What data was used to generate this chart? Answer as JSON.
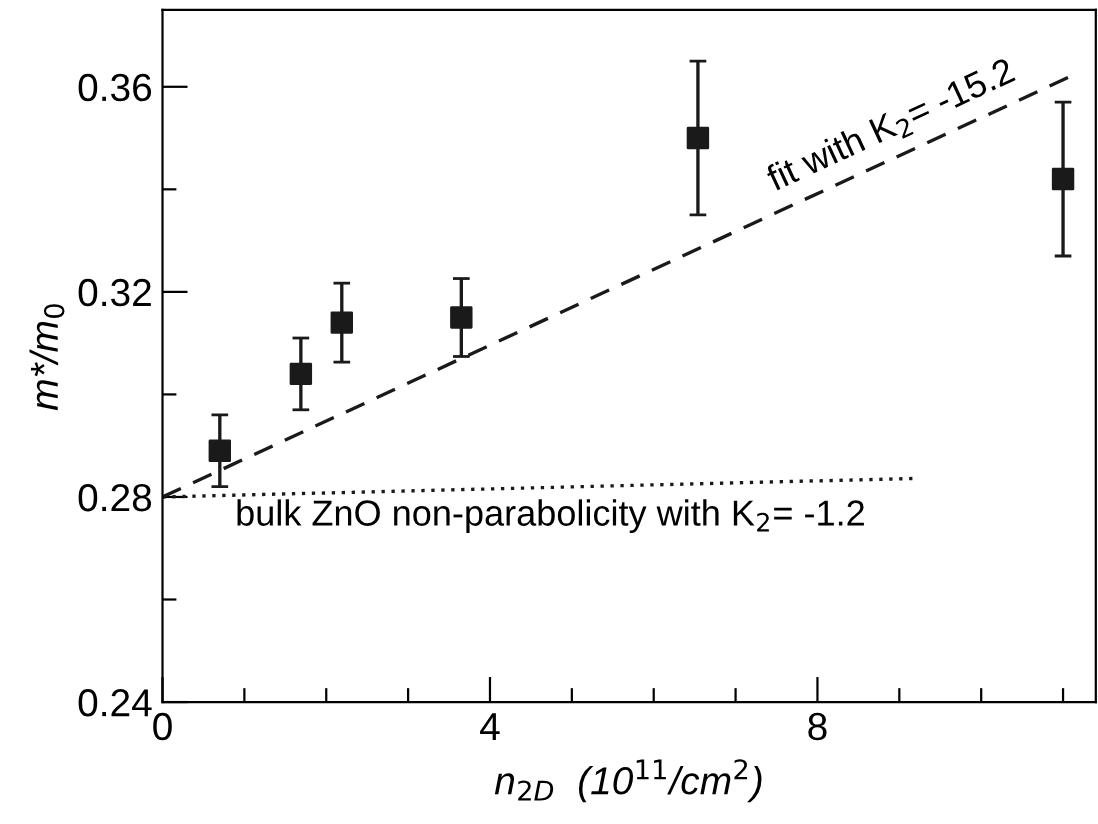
{
  "chart_data": {
    "type": "scatter",
    "xlabel": "n$_{2D}$  (10$^{11}$/cm$^{2}$)",
    "ylabel": "m*/m$_{0}$",
    "series": [
      {
        "color": "#1a1a1a",
        "marker": "square",
        "x": [
          0.7,
          1.69,
          2.19,
          3.65,
          6.54,
          11.0
        ],
        "values": [
          0.289,
          0.304,
          0.314,
          0.315,
          0.35,
          0.342
        ],
        "errors": [
          0.007,
          0.007,
          0.0077,
          0.0076,
          0.015,
          0.015
        ]
      },
      {
        "type": "line",
        "color": "#1a1a1a",
        "line_style": "dashed",
        "marker": "none",
        "x": [
          0,
          4,
          11.06
        ],
        "values": [
          0.28,
          0.3096,
          0.3618
        ]
      },
      {
        "type": "line",
        "color": "#1a1a1a",
        "line_style": "dotted",
        "marker": "none",
        "x": [
          0,
          9.16
        ],
        "values": [
          0.28,
          0.2836
        ]
      }
    ],
    "annotations": [
      {
        "text": "fit with K$_{2}$= -15.2",
        "x": 9.0,
        "y": 0.347
      },
      {
        "text": "bulk ZnO non-parabolicity with K$_{2}$= -1.2",
        "x": 4.74,
        "y": 0.2817
      }
    ],
    "xlim": [
      0,
      11.4
    ],
    "ylim": [
      0.24,
      0.375
    ],
    "xticks": [
      0,
      {
        "value": 1,
        "label": null
      },
      {
        "value": 2,
        "label": null
      },
      {
        "value": 3,
        "label": null
      },
      4,
      {
        "value": 5,
        "label": null
      },
      {
        "value": 6,
        "label": null
      },
      {
        "value": 7,
        "label": null
      },
      8,
      {
        "value": 9,
        "label": null
      },
      {
        "value": 10,
        "label": null
      },
      {
        "value": 11,
        "label": null
      }
    ],
    "yticks": [
      {
        "value": 0.24,
        "label": "0.24"
      },
      {
        "value": 0.26,
        "label": null
      },
      {
        "value": 0.28,
        "label": "0.28"
      },
      {
        "value": 0.3,
        "label": null
      },
      {
        "value": 0.32,
        "label": "0.32"
      },
      {
        "value": 0.34,
        "label": null
      },
      {
        "value": 0.36,
        "label": "0.36"
      }
    ],
    "grid": false,
    "legend": false
  }
}
